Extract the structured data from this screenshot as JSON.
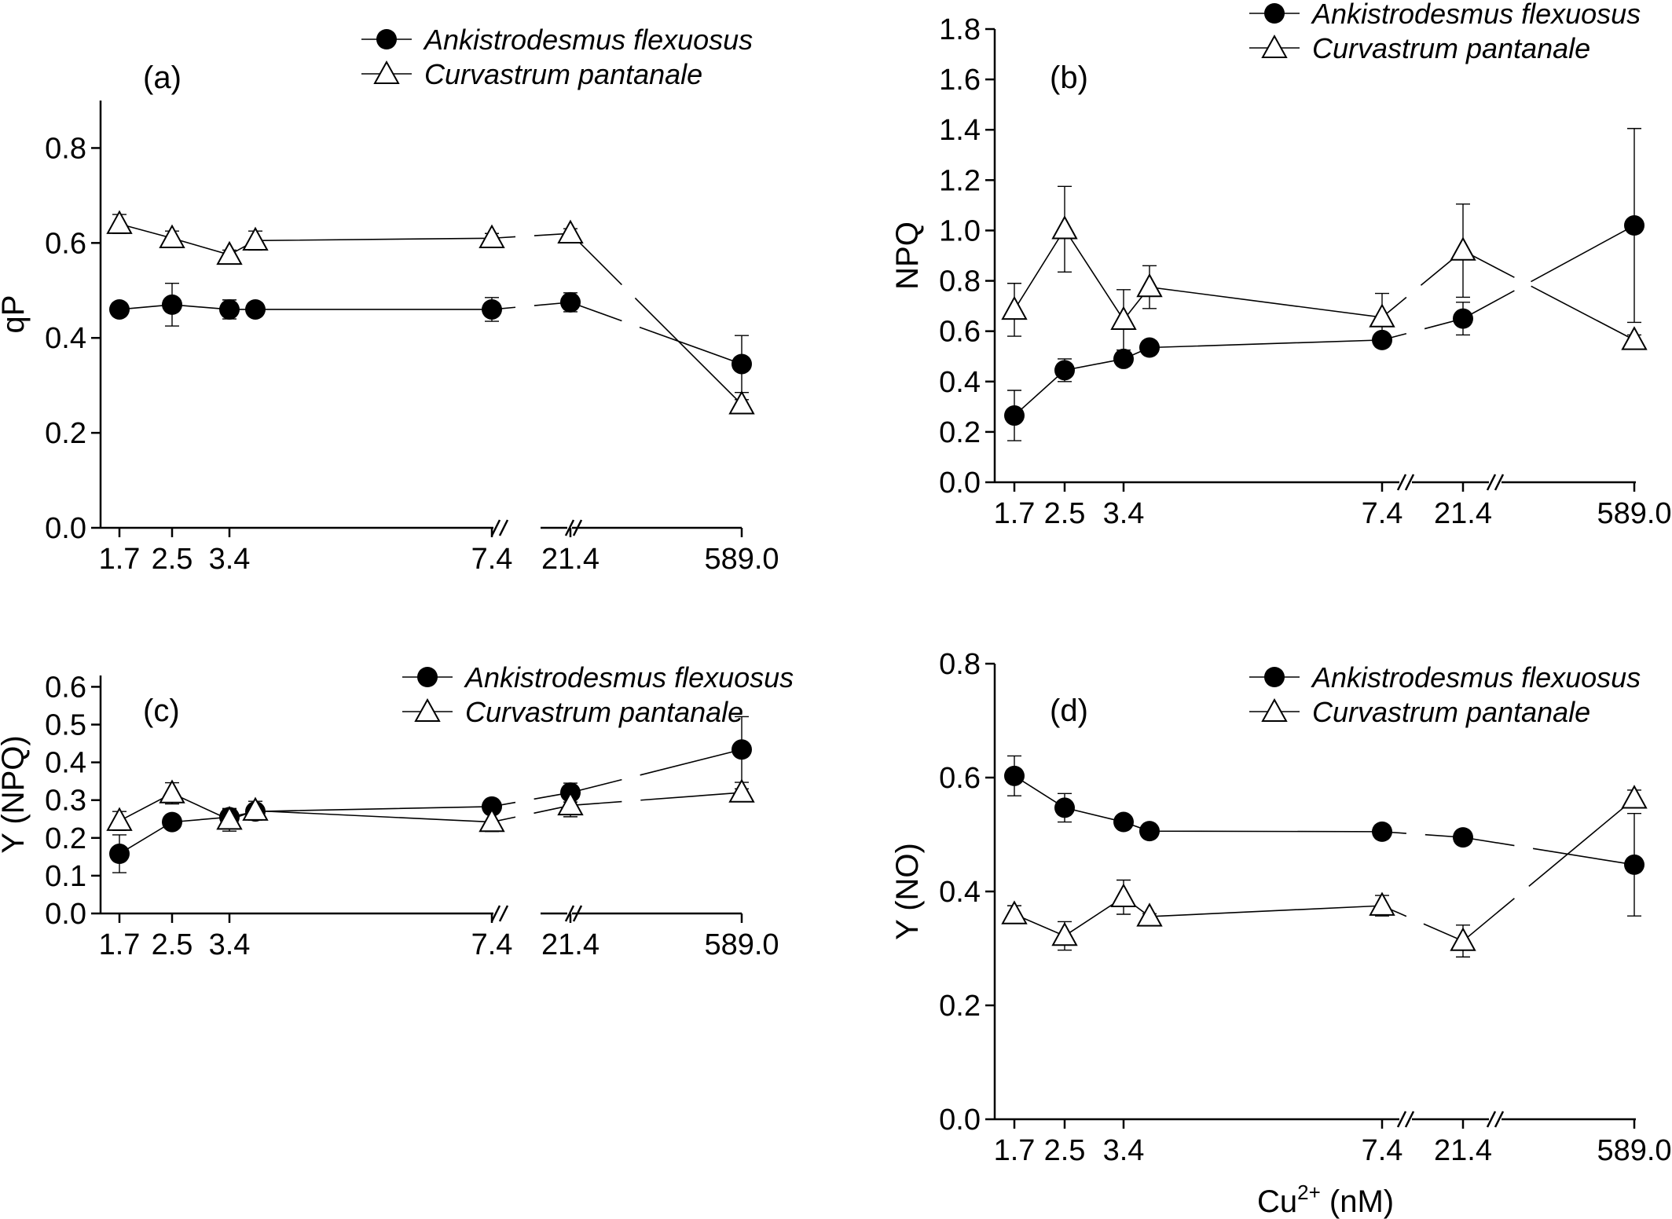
{
  "figure": {
    "x_axis_title_main": "Cu",
    "x_axis_title_sup": "2+",
    "x_axis_title_unit": " (nM)"
  },
  "chart_data": [
    {
      "type": "line",
      "panel_label": "(a)",
      "ylabel": "qP",
      "ylim": [
        0,
        0.9
      ],
      "yticks": [
        "0.0",
        "0.2",
        "0.4",
        "0.6",
        "0.8"
      ],
      "xticks": [
        "1.7",
        "2.5",
        "3.4",
        "7.4",
        "21.4",
        "589.0"
      ],
      "x_scale": "broken-categorical",
      "axis_breaks": [
        "7.4-21.4",
        "21.4-589.0"
      ],
      "legend_position": "top-right",
      "series": [
        {
          "name": "Ankistrodesmus flexuosus",
          "marker": "filled-circle",
          "x": [
            "1.7",
            "2.5",
            "3.4",
            "3.9",
            "7.4",
            "21.4",
            "589.0"
          ],
          "y": [
            0.46,
            0.47,
            0.46,
            0.46,
            0.46,
            0.475,
            0.345
          ],
          "err": [
            0.01,
            0.045,
            0.02,
            0.005,
            0.025,
            0.02,
            0.06
          ]
        },
        {
          "name": "Curvastrum pantanale",
          "marker": "open-triangle",
          "x": [
            "1.7",
            "2.5",
            "3.4",
            "3.9",
            "7.4",
            "21.4",
            "589.0"
          ],
          "y": [
            0.64,
            0.61,
            0.575,
            0.605,
            0.61,
            0.62,
            0.26
          ],
          "err": [
            0.02,
            0.015,
            0.01,
            0.02,
            0.01,
            0.01,
            0.01
          ]
        }
      ]
    },
    {
      "type": "line",
      "panel_label": "(b)",
      "ylabel": "NPQ",
      "ylim": [
        0,
        1.8
      ],
      "yticks": [
        "0.0",
        "0.2",
        "0.4",
        "0.6",
        "0.8",
        "1.0",
        "1.2",
        "1.4",
        "1.6",
        "1.8"
      ],
      "xticks": [
        "1.7",
        "2.5",
        "3.4",
        "7.4",
        "21.4",
        "589.0"
      ],
      "x_scale": "broken-categorical",
      "axis_breaks": [
        "3.4-7.4",
        "7.4-21.4",
        "21.4-589.0"
      ],
      "legend_position": "top-right",
      "series": [
        {
          "name": "Ankistrodesmus flexuosus",
          "marker": "filled-circle",
          "x": [
            "1.7",
            "2.5",
            "3.4",
            "3.9",
            "7.4",
            "21.4",
            "589.0"
          ],
          "y": [
            0.265,
            0.445,
            0.49,
            0.535,
            0.565,
            0.65,
            1.02
          ],
          "err": [
            0.1,
            0.045,
            0.02,
            0.01,
            0.01,
            0.065,
            0.385
          ]
        },
        {
          "name": "Curvastrum pantanale",
          "marker": "open-triangle",
          "x": [
            "1.7",
            "2.5",
            "3.4",
            "3.9",
            "7.4",
            "21.4",
            "589.0"
          ],
          "y": [
            0.685,
            1.005,
            0.645,
            0.775,
            0.655,
            0.92,
            0.565
          ],
          "err": [
            0.105,
            0.17,
            0.12,
            0.085,
            0.095,
            0.185,
            0.02
          ]
        }
      ]
    },
    {
      "type": "line",
      "panel_label": "(c)",
      "ylabel": "Y (NPQ)",
      "ylim": [
        0,
        0.63
      ],
      "yticks": [
        "0.0",
        "0.1",
        "0.2",
        "0.3",
        "0.4",
        "0.5",
        "0.6"
      ],
      "xticks": [
        "1.7",
        "2.5",
        "3.4",
        "7.4",
        "21.4",
        "589.0"
      ],
      "x_scale": "broken-categorical",
      "axis_breaks": [
        "7.4-21.4",
        "21.4-589.0"
      ],
      "legend_position": "top-right",
      "series": [
        {
          "name": "Ankistrodesmus flexuosus",
          "marker": "filled-circle",
          "x": [
            "1.7",
            "2.5",
            "3.4",
            "3.9",
            "7.4",
            "21.4",
            "589.0"
          ],
          "y": [
            0.158,
            0.242,
            0.255,
            0.27,
            0.283,
            0.32,
            0.434
          ],
          "err": [
            0.05,
            0.012,
            0.02,
            0.015,
            0.005,
            0.025,
            0.087
          ]
        },
        {
          "name": "Curvastrum pantanale",
          "marker": "open-triangle",
          "x": [
            "1.7",
            "2.5",
            "3.4",
            "3.9",
            "7.4",
            "21.4",
            "589.0"
          ],
          "y": [
            0.245,
            0.318,
            0.248,
            0.272,
            0.242,
            0.286,
            0.32
          ],
          "err": [
            0.025,
            0.028,
            0.03,
            0.025,
            0.025,
            0.03,
            0.01
          ]
        }
      ]
    },
    {
      "type": "line",
      "panel_label": "(d)",
      "ylabel": "Y (NO)",
      "ylim": [
        0,
        0.8
      ],
      "yticks": [
        "0.0",
        "0.2",
        "0.4",
        "0.6",
        "0.8"
      ],
      "xticks": [
        "1.7",
        "2.5",
        "3.4",
        "7.4",
        "21.4",
        "589.0"
      ],
      "x_scale": "broken-categorical",
      "axis_breaks": [
        "3.4-7.4",
        "7.4-21.4",
        "21.4-589.0"
      ],
      "legend_position": "top-right",
      "series": [
        {
          "name": "Ankistrodesmus flexuosus",
          "marker": "filled-circle",
          "x": [
            "1.7",
            "2.5",
            "3.4",
            "3.9",
            "7.4",
            "21.4",
            "589.0"
          ],
          "y": [
            0.603,
            0.547,
            0.522,
            0.506,
            0.505,
            0.495,
            0.447
          ],
          "err": [
            0.035,
            0.025,
            0.005,
            0.005,
            0.005,
            0.005,
            0.09
          ]
        },
        {
          "name": "Curvastrum pantanale",
          "marker": "open-triangle",
          "x": [
            "1.7",
            "2.5",
            "3.4",
            "3.9",
            "7.4",
            "21.4",
            "589.0"
          ],
          "y": [
            0.36,
            0.322,
            0.39,
            0.356,
            0.375,
            0.313,
            0.563
          ],
          "err": [
            0.015,
            0.025,
            0.03,
            0.005,
            0.018,
            0.028,
            0.015
          ]
        }
      ]
    }
  ]
}
